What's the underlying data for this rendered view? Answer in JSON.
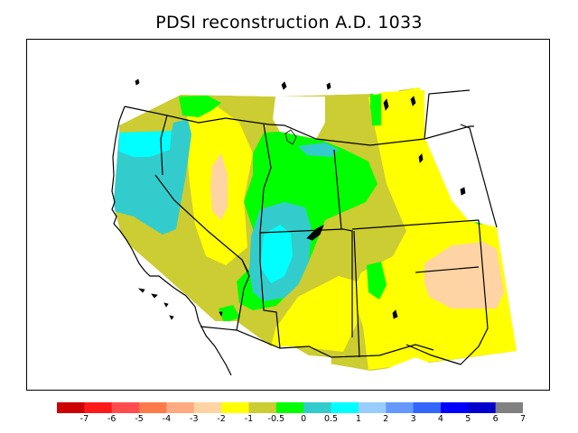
{
  "title": "PDSI reconstruction A.D. 1033",
  "legend": {
    "colors": [
      "#cc0000",
      "#ff1a1a",
      "#ff4c4c",
      "#ff7a4a",
      "#ffaa80",
      "#ffd4a4",
      "#ffff00",
      "#cccc33",
      "#00ff00",
      "#33cccc",
      "#00ffff",
      "#99ccff",
      "#6699ff",
      "#3366ff",
      "#0000ff",
      "#0000cc",
      "#808080"
    ],
    "labels": [
      "-7",
      "-6",
      "-5",
      "-4",
      "-3",
      "-2",
      "-1",
      "-0.5",
      "0",
      "0.5",
      "1",
      "2",
      "3",
      "4",
      "5",
      "6",
      "7"
    ]
  },
  "palette": {
    "dry_moderate": "#ffd4a4",
    "dry_mild": "#ffff00",
    "near_normal_dry": "#cccc33",
    "near_normal": "#00ff00",
    "wet_mild": "#33cccc",
    "wet_moderate": "#00ffff"
  }
}
